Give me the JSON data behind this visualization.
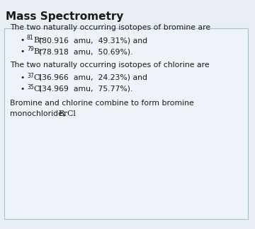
{
  "title": "Mass Spectrometry",
  "title_fontsize": 11,
  "title_fontweight": "bold",
  "background_color": "#e8eef4",
  "box_color": "#edf3f8",
  "box_border_color": "#a8bfcc",
  "text_color": "#1a1a1a",
  "body_fontsize": 7.8,
  "line1": "The two naturally occurring isotopes of bromine are",
  "bullet1_sup": "81",
  "bullet1_elem": "Br",
  "bullet1_amu": "(80.916  amu,  49.31%) and",
  "bullet2_sup": "79",
  "bullet2_elem": "Br",
  "bullet2_amu": "(78.918  amu,  50.69%).",
  "line2": "The two naturally occurring isotopes of chlorine are",
  "bullet3_sup": "37",
  "bullet3_elem": "Cl",
  "bullet3_amu": "(36.966  amu,  24.23%) and",
  "bullet4_sup": "35",
  "bullet4_elem": "Cl",
  "bullet4_amu": "(34.969  amu,  75.77%).",
  "footer1": "Bromine and chlorine combine to form bromine",
  "footer2_pre": "monochloride,  ",
  "footer2_chem": "BrCl",
  "footer2_post": "."
}
